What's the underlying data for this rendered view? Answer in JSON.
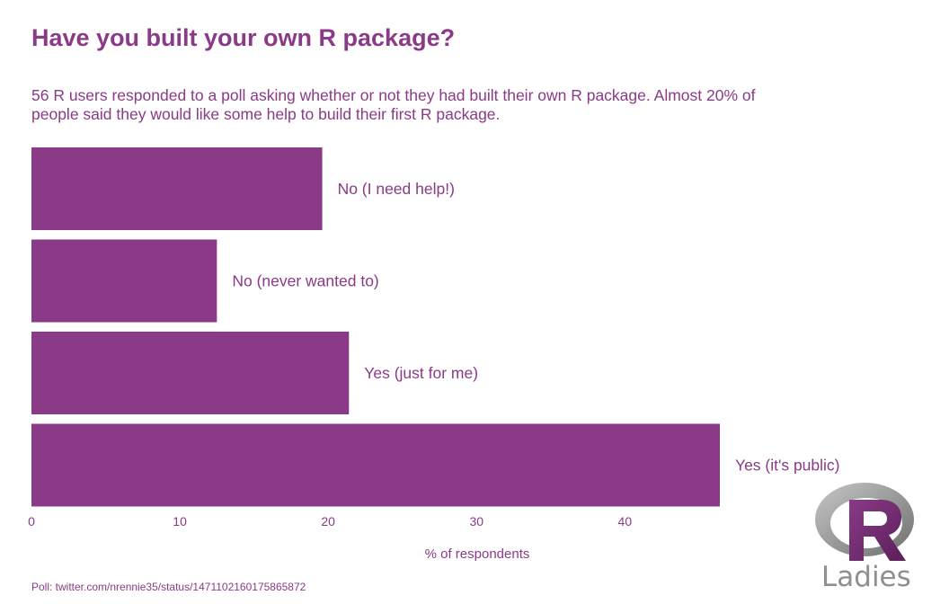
{
  "title": "Have you built your own R package?",
  "subtitle": "56 R users responded to a poll asking whether or not they had built their own R package. Almost 20% of people said they would like some help to build their first R package.",
  "caption": "Poll: twitter.com/nrennie35/status/1471102160175865872",
  "bar_color": "#8a3a87",
  "logo": {
    "icon": "r-ladies-logo",
    "text": "Ladies"
  },
  "chart_data": {
    "type": "bar",
    "orientation": "horizontal",
    "title": "Have you built your own R package?",
    "xlabel": "% of respondents",
    "ylabel": "",
    "xlim": [
      0,
      46.4
    ],
    "x_ticks": [
      0,
      10,
      20,
      30,
      40
    ],
    "grid": false,
    "categories": [
      "No (I need help!)",
      "No (never wanted to)",
      "Yes (just for me)",
      "Yes (it's public)"
    ],
    "values": [
      19.6,
      12.5,
      21.4,
      46.4
    ]
  }
}
